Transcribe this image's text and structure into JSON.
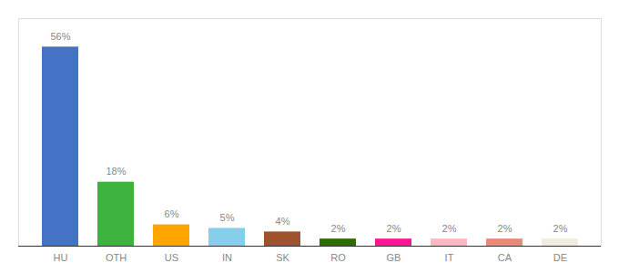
{
  "chart_data": {
    "type": "bar",
    "categories": [
      "HU",
      "OTH",
      "US",
      "IN",
      "SK",
      "RO",
      "GB",
      "IT",
      "CA",
      "DE"
    ],
    "values": [
      56,
      18,
      6,
      5,
      4,
      2,
      2,
      2,
      2,
      2
    ],
    "value_labels": [
      "56%",
      "18%",
      "6%",
      "5%",
      "4%",
      "2%",
      "2%",
      "2%",
      "2%",
      "2%"
    ],
    "colors": [
      "#4472c4",
      "#3db33d",
      "#ffa500",
      "#87ceeb",
      "#a0522d",
      "#2e6b00",
      "#ff1493",
      "#ffb6c1",
      "#e8897a",
      "#f0ece0"
    ],
    "ylim": [
      0,
      64
    ],
    "data_labels": true,
    "tick_labels": "x",
    "grid": false
  }
}
